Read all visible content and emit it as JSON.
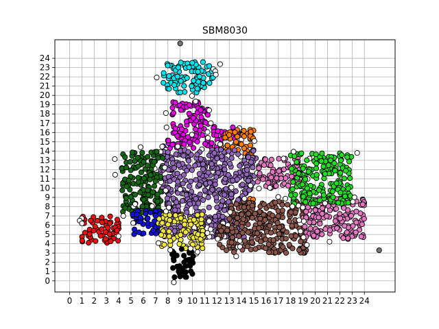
{
  "chart_data": {
    "type": "scatter",
    "title": "SBM8030",
    "xlabel": "",
    "ylabel": "",
    "xlim": [
      -1.2,
      26.5
    ],
    "ylim": [
      -1.2,
      26.0
    ],
    "x_ticks": [
      0,
      1,
      2,
      3,
      4,
      5,
      6,
      7,
      8,
      9,
      10,
      11,
      12,
      13,
      14,
      15,
      16,
      17,
      18,
      19,
      20,
      21,
      22,
      23,
      24
    ],
    "y_ticks": [
      0,
      1,
      2,
      3,
      4,
      5,
      6,
      7,
      8,
      9,
      10,
      11,
      12,
      13,
      14,
      15,
      16,
      17,
      18,
      19,
      20,
      21,
      22,
      23,
      24
    ],
    "grid": true,
    "legend": "none",
    "edge_color": "#000000",
    "clusters": [
      {
        "color": "#00e5ee",
        "description": "cyan",
        "blocks": [
          [
            7.6,
            20.3,
            11.7,
            23.6
          ]
        ]
      },
      {
        "color": "#e800e8",
        "description": "magenta",
        "blocks": [
          [
            8.3,
            15.3,
            11.3,
            19.3
          ],
          [
            7.3,
            14.3,
            12.5,
            15.3
          ],
          [
            11.7,
            15.2,
            13.7,
            16.7
          ]
        ]
      },
      {
        "color": "#ff7f0e",
        "description": "orange",
        "blocks": [
          [
            12.3,
            13.7,
            15.0,
            16.3
          ],
          [
            14.0,
            8.0,
            15.0,
            9.0
          ]
        ]
      },
      {
        "color": "#9467bd",
        "description": "purple",
        "blocks": [
          [
            7.4,
            9.4,
            15.2,
            14.3
          ],
          [
            7.7,
            4.7,
            14.3,
            9.5
          ]
        ]
      },
      {
        "color": "#136a13",
        "description": "darkgreen",
        "blocks": [
          [
            4.2,
            7.3,
            7.6,
            14.0
          ]
        ]
      },
      {
        "color": "#ee1111",
        "description": "red",
        "blocks": [
          [
            1.0,
            4.1,
            4.0,
            7.0
          ]
        ]
      },
      {
        "color": "#1111dd",
        "description": "blue",
        "blocks": [
          [
            5.1,
            5.0,
            7.5,
            7.7
          ]
        ]
      },
      {
        "color": "#f0e63c",
        "description": "yellow",
        "blocks": [
          [
            7.2,
            3.5,
            10.9,
            7.2
          ]
        ]
      },
      {
        "color": "#000000",
        "description": "black",
        "blocks": [
          [
            8.3,
            0.1,
            10.1,
            3.5
          ]
        ]
      },
      {
        "color": "#8c564b",
        "description": "brown",
        "blocks": [
          [
            13.0,
            3.0,
            19.3,
            8.6
          ],
          [
            12.0,
            3.2,
            13.4,
            6.0
          ]
        ]
      },
      {
        "color": "#e377c2",
        "description": "pink",
        "blocks": [
          [
            15.3,
            10.0,
            19.0,
            13.3
          ],
          [
            19.0,
            4.5,
            24.0,
            9.0
          ]
        ]
      },
      {
        "color": "#22dd22",
        "description": "green",
        "blocks": [
          [
            18.0,
            8.3,
            23.0,
            13.8
          ]
        ]
      }
    ],
    "outliers_color": "#ffffff",
    "gray_points": [
      [
        9,
        25.6
      ],
      [
        25.2,
        3.3
      ]
    ],
    "gray_color": "#777777"
  }
}
